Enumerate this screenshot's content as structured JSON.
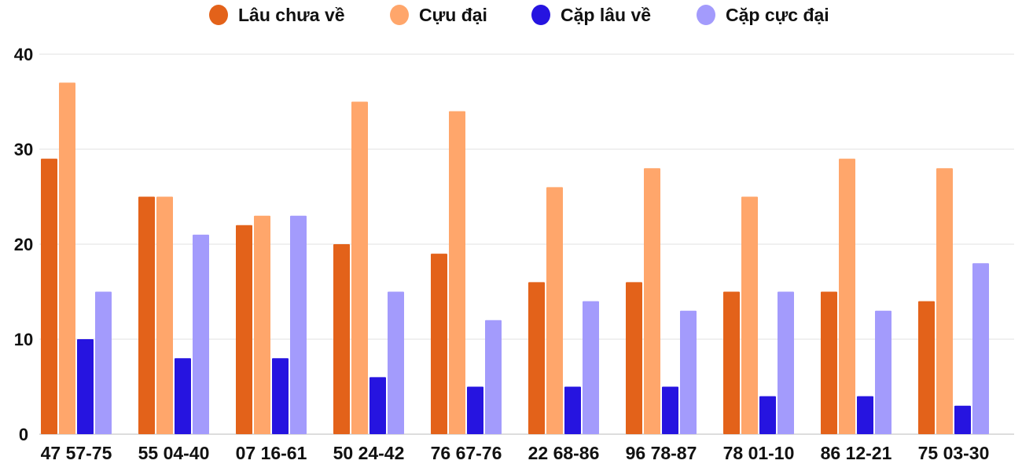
{
  "chart_data": {
    "type": "bar",
    "title": "",
    "xlabel": "",
    "ylabel": "",
    "ylim": [
      0,
      40
    ],
    "yticks": [
      0,
      10,
      20,
      30,
      40
    ],
    "grid": true,
    "legend_position": "top",
    "categories": [
      "47 57-75",
      "55 04-40",
      "07 16-61",
      "50 24-42",
      "76 67-76",
      "22 68-86",
      "96 78-87",
      "78 01-10",
      "86 12-21",
      "75 03-30"
    ],
    "series": [
      {
        "name": "Lâu chưa về",
        "color": "#E3621A",
        "values": [
          29,
          25,
          22,
          20,
          19,
          16,
          16,
          15,
          15,
          14
        ]
      },
      {
        "name": "Cựu đại",
        "color": "#FFA66B",
        "values": [
          37,
          25,
          23,
          35,
          34,
          26,
          28,
          25,
          29,
          28
        ]
      },
      {
        "name": "Cặp lâu về",
        "color": "#2614E0",
        "values": [
          10,
          8,
          8,
          6,
          5,
          5,
          5,
          4,
          4,
          3
        ]
      },
      {
        "name": "Cặp cực đại",
        "color": "#A39BFC",
        "values": [
          15,
          21,
          23,
          15,
          12,
          14,
          13,
          15,
          13,
          18
        ]
      }
    ]
  }
}
